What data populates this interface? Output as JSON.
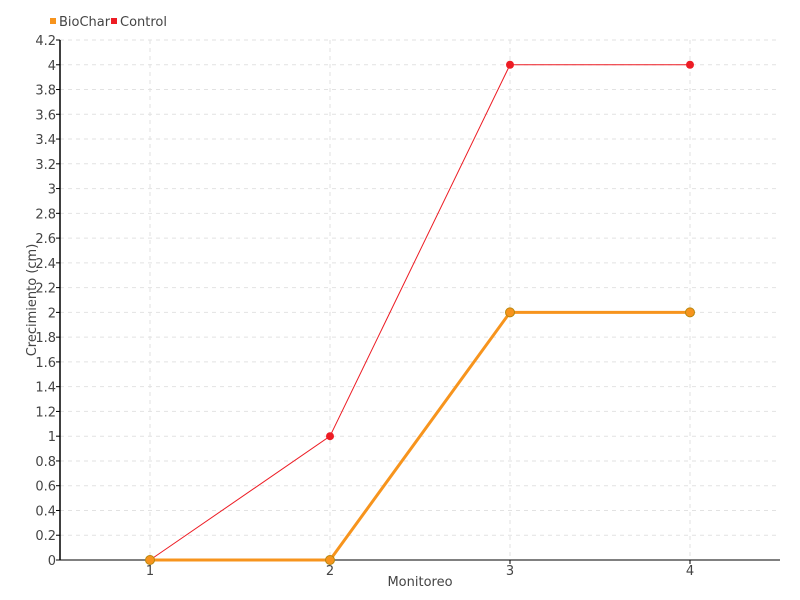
{
  "chart_data": {
    "type": "line",
    "title": "",
    "xlabel": "Monitoreo",
    "ylabel": "Crecimiento (cm)",
    "categories": [
      "1",
      "2",
      "3",
      "4"
    ],
    "x": [
      1,
      2,
      3,
      4
    ],
    "xlim": [
      0.5,
      4.5
    ],
    "ylim": [
      0,
      4.2
    ],
    "yticks": [
      0,
      0.2,
      0.4,
      0.6,
      0.8,
      1,
      1.2,
      1.4,
      1.6,
      1.8,
      2,
      2.2,
      2.4,
      2.6,
      2.8,
      3,
      3.2,
      3.4,
      3.6,
      3.8,
      4,
      4.2
    ],
    "grid": true,
    "legend_position": "top-left",
    "series": [
      {
        "name": "BioChar",
        "values": [
          0,
          0,
          2,
          2
        ],
        "color": "#f7941d"
      },
      {
        "name": "Control",
        "values": [
          0,
          1,
          4,
          4
        ],
        "color": "#ed1c24"
      }
    ]
  }
}
